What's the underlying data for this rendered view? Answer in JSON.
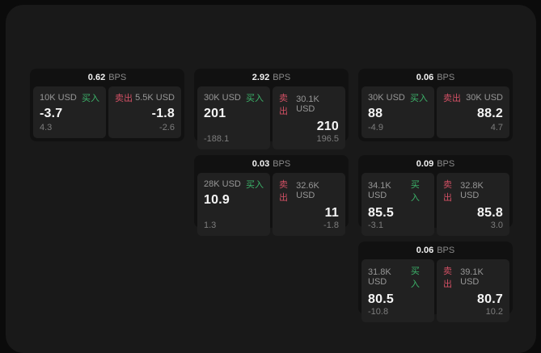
{
  "labels": {
    "bps_unit": "BPS",
    "buy": "买入",
    "sell": "卖出"
  },
  "colors": {
    "buy_green": "#3cb46a",
    "sell_rose": "#d25064"
  },
  "cards": [
    {
      "bps": "0.62",
      "buy": {
        "amount": "10K USD",
        "price": "-3.7",
        "delta": "4.3"
      },
      "sell": {
        "amount": "5.5K USD",
        "price": "-1.8",
        "delta": "-2.6"
      }
    },
    {
      "bps": "2.92",
      "buy": {
        "amount": "30K USD",
        "price": "201",
        "delta": "-188.1"
      },
      "sell": {
        "amount": "30.1K USD",
        "price": "210",
        "delta": "196.5"
      }
    },
    {
      "bps": "0.06",
      "buy": {
        "amount": "30K USD",
        "price": "88",
        "delta": "-4.9"
      },
      "sell": {
        "amount": "30K USD",
        "price": "88.2",
        "delta": "4.7"
      }
    },
    {
      "bps": "0.03",
      "buy": {
        "amount": "28K USD",
        "price": "10.9",
        "delta": "1.3"
      },
      "sell": {
        "amount": "32.6K USD",
        "price": "11",
        "delta": "-1.8"
      }
    },
    {
      "bps": "0.09",
      "buy": {
        "amount": "34.1K USD",
        "price": "85.5",
        "delta": "-3.1"
      },
      "sell": {
        "amount": "32.8K USD",
        "price": "85.8",
        "delta": "3.0"
      }
    },
    {
      "bps": "0.06",
      "buy": {
        "amount": "31.8K USD",
        "price": "80.5",
        "delta": "-10.8"
      },
      "sell": {
        "amount": "39.1K USD",
        "price": "80.7",
        "delta": "10.2"
      }
    }
  ]
}
